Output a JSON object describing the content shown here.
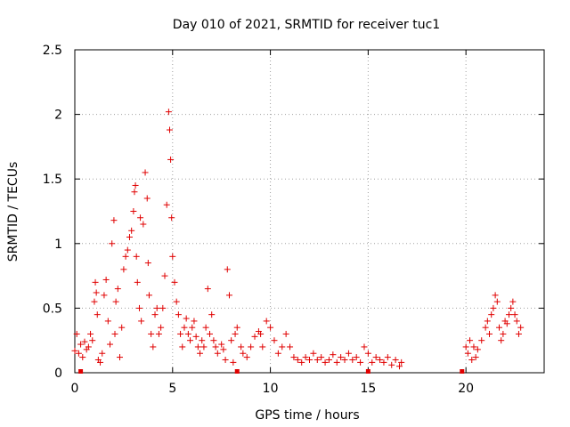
{
  "chart_data": {
    "type": "scatter",
    "title": "Day 010 of 2021, SRMTID for receiver tuc1",
    "xlabel": "GPS time / hours",
    "ylabel": "SRMTID / TECUs",
    "xlim": [
      0,
      24
    ],
    "ylim": [
      0,
      2.5
    ],
    "xticks": [
      "0",
      "5",
      "10",
      "15",
      "20"
    ],
    "xtick_values": [
      0,
      5,
      10,
      15,
      20
    ],
    "yticks": [
      "0",
      "0.5",
      "1",
      "1.5",
      "2",
      "2.5"
    ],
    "ytick_values": [
      0,
      0.5,
      1,
      1.5,
      2,
      2.5
    ],
    "grid": true,
    "marker": "+",
    "series_color": "#e00000",
    "series": [
      {
        "name": "SRMTID",
        "points": [
          [
            0.0,
            0.17
          ],
          [
            0.1,
            0.3
          ],
          [
            0.2,
            0.15
          ],
          [
            0.3,
            0.22
          ],
          [
            0.4,
            0.12
          ],
          [
            0.5,
            0.24
          ],
          [
            0.6,
            0.18
          ],
          [
            0.7,
            0.2
          ],
          [
            0.8,
            0.3
          ],
          [
            0.9,
            0.25
          ],
          [
            1.0,
            0.55
          ],
          [
            1.05,
            0.7
          ],
          [
            1.1,
            0.62
          ],
          [
            1.15,
            0.45
          ],
          [
            1.2,
            0.1
          ],
          [
            1.3,
            0.08
          ],
          [
            1.4,
            0.15
          ],
          [
            1.5,
            0.6
          ],
          [
            1.6,
            0.72
          ],
          [
            1.7,
            0.4
          ],
          [
            1.8,
            0.22
          ],
          [
            1.9,
            1.0
          ],
          [
            2.0,
            1.18
          ],
          [
            2.05,
            0.3
          ],
          [
            2.1,
            0.55
          ],
          [
            2.2,
            0.65
          ],
          [
            2.3,
            0.12
          ],
          [
            2.4,
            0.35
          ],
          [
            2.5,
            0.8
          ],
          [
            2.6,
            0.9
          ],
          [
            2.7,
            0.95
          ],
          [
            2.8,
            1.05
          ],
          [
            2.9,
            1.1
          ],
          [
            3.0,
            1.25
          ],
          [
            3.05,
            1.4
          ],
          [
            3.1,
            1.45
          ],
          [
            3.15,
            0.9
          ],
          [
            3.2,
            0.7
          ],
          [
            3.3,
            0.5
          ],
          [
            3.35,
            1.2
          ],
          [
            3.4,
            0.4
          ],
          [
            3.5,
            1.15
          ],
          [
            3.6,
            1.55
          ],
          [
            3.7,
            1.35
          ],
          [
            3.75,
            0.85
          ],
          [
            3.8,
            0.6
          ],
          [
            3.9,
            0.3
          ],
          [
            4.0,
            0.2
          ],
          [
            4.1,
            0.45
          ],
          [
            4.2,
            0.5
          ],
          [
            4.3,
            0.3
          ],
          [
            4.4,
            0.35
          ],
          [
            4.5,
            0.5
          ],
          [
            4.6,
            0.75
          ],
          [
            4.7,
            1.3
          ],
          [
            4.8,
            2.02
          ],
          [
            4.85,
            1.88
          ],
          [
            4.9,
            1.65
          ],
          [
            4.95,
            1.2
          ],
          [
            5.0,
            0.9
          ],
          [
            5.1,
            0.7
          ],
          [
            5.2,
            0.55
          ],
          [
            5.3,
            0.45
          ],
          [
            5.4,
            0.3
          ],
          [
            5.5,
            0.2
          ],
          [
            5.6,
            0.35
          ],
          [
            5.7,
            0.42
          ],
          [
            5.8,
            0.3
          ],
          [
            5.9,
            0.25
          ],
          [
            6.0,
            0.35
          ],
          [
            6.1,
            0.4
          ],
          [
            6.2,
            0.28
          ],
          [
            6.3,
            0.2
          ],
          [
            6.4,
            0.15
          ],
          [
            6.5,
            0.25
          ],
          [
            6.6,
            0.2
          ],
          [
            6.7,
            0.35
          ],
          [
            6.8,
            0.65
          ],
          [
            6.9,
            0.3
          ],
          [
            7.0,
            0.45
          ],
          [
            7.1,
            0.25
          ],
          [
            7.2,
            0.2
          ],
          [
            7.3,
            0.15
          ],
          [
            7.5,
            0.22
          ],
          [
            7.6,
            0.18
          ],
          [
            7.7,
            0.1
          ],
          [
            7.8,
            0.8
          ],
          [
            7.9,
            0.6
          ],
          [
            8.0,
            0.25
          ],
          [
            8.1,
            0.08
          ],
          [
            8.2,
            0.3
          ],
          [
            8.3,
            0.35
          ],
          [
            8.5,
            0.2
          ],
          [
            8.6,
            0.15
          ],
          [
            8.8,
            0.12
          ],
          [
            9.0,
            0.2
          ],
          [
            9.2,
            0.28
          ],
          [
            9.4,
            0.32
          ],
          [
            9.5,
            0.3
          ],
          [
            9.6,
            0.2
          ],
          [
            9.8,
            0.4
          ],
          [
            10.0,
            0.35
          ],
          [
            10.2,
            0.25
          ],
          [
            10.4,
            0.15
          ],
          [
            10.6,
            0.2
          ],
          [
            10.8,
            0.3
          ],
          [
            11.0,
            0.2
          ],
          [
            11.2,
            0.12
          ],
          [
            11.4,
            0.1
          ],
          [
            11.6,
            0.08
          ],
          [
            11.8,
            0.12
          ],
          [
            12.0,
            0.1
          ],
          [
            12.2,
            0.15
          ],
          [
            12.4,
            0.1
          ],
          [
            12.6,
            0.12
          ],
          [
            12.8,
            0.08
          ],
          [
            13.0,
            0.1
          ],
          [
            13.2,
            0.14
          ],
          [
            13.4,
            0.08
          ],
          [
            13.6,
            0.12
          ],
          [
            13.8,
            0.1
          ],
          [
            14.0,
            0.15
          ],
          [
            14.2,
            0.1
          ],
          [
            14.4,
            0.12
          ],
          [
            14.6,
            0.08
          ],
          [
            14.8,
            0.2
          ],
          [
            15.0,
            0.15
          ],
          [
            15.2,
            0.08
          ],
          [
            15.4,
            0.12
          ],
          [
            15.6,
            0.1
          ],
          [
            15.8,
            0.08
          ],
          [
            16.0,
            0.12
          ],
          [
            16.2,
            0.06
          ],
          [
            16.4,
            0.1
          ],
          [
            16.6,
            0.05
          ],
          [
            16.7,
            0.08
          ],
          [
            20.0,
            0.2
          ],
          [
            20.1,
            0.15
          ],
          [
            20.2,
            0.25
          ],
          [
            20.3,
            0.1
          ],
          [
            20.4,
            0.2
          ],
          [
            20.5,
            0.12
          ],
          [
            20.6,
            0.18
          ],
          [
            20.8,
            0.25
          ],
          [
            21.0,
            0.35
          ],
          [
            21.1,
            0.4
          ],
          [
            21.2,
            0.3
          ],
          [
            21.3,
            0.45
          ],
          [
            21.4,
            0.5
          ],
          [
            21.5,
            0.6
          ],
          [
            21.6,
            0.55
          ],
          [
            21.7,
            0.35
          ],
          [
            21.8,
            0.25
          ],
          [
            21.9,
            0.3
          ],
          [
            22.0,
            0.4
          ],
          [
            22.1,
            0.38
          ],
          [
            22.2,
            0.45
          ],
          [
            22.3,
            0.5
          ],
          [
            22.4,
            0.55
          ],
          [
            22.5,
            0.45
          ],
          [
            22.6,
            0.4
          ],
          [
            22.7,
            0.3
          ],
          [
            22.8,
            0.35
          ]
        ]
      }
    ],
    "gap_markers": [
      0.3,
      8.3,
      15.0,
      19.8
    ]
  }
}
